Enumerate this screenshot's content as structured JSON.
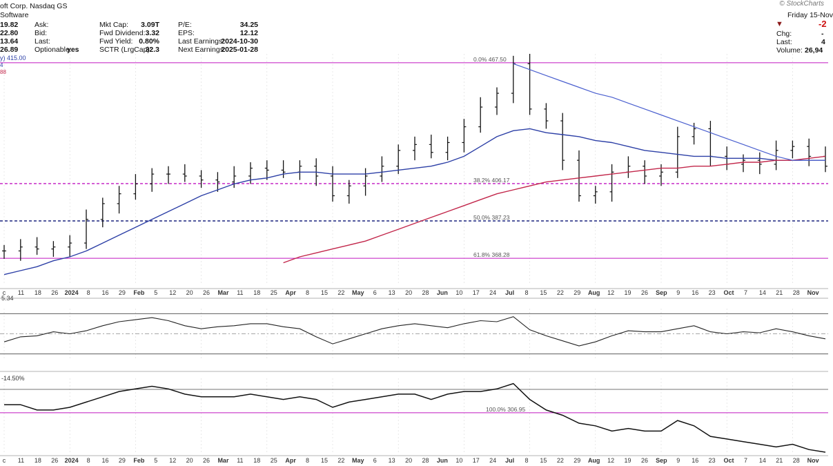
{
  "header": {
    "title": "oft Corp. Nasdaq GS",
    "sector": "Software",
    "brand": "© StockCharts",
    "date_label": "Friday 15-Nov",
    "chg_value": "-2",
    "left_values": [
      "19.82",
      "22.80",
      "13.64",
      "26.89"
    ],
    "col1": [
      {
        "label": "Ask:",
        "value": ""
      },
      {
        "label": "Bid:",
        "value": ""
      },
      {
        "label": "Last:",
        "value": ""
      },
      {
        "label": "Optionable:",
        "value": "yes"
      }
    ],
    "col2": [
      {
        "label": "Mkt Cap:",
        "value": "3.09T"
      },
      {
        "label": "Fwd Dividend:",
        "value": "3.32"
      },
      {
        "label": "Fwd Yield:",
        "value": "0.80%"
      },
      {
        "label": "SCTR (LrgCap):",
        "value": "32.3"
      }
    ],
    "col3": [
      {
        "label": "P/E:",
        "value": "34.25"
      },
      {
        "label": "EPS:",
        "value": "12.12"
      },
      {
        "label": "Last Earnings:",
        "value": "2024-10-30"
      },
      {
        "label": "Next Earnings:",
        "value": "2025-01-28"
      }
    ],
    "right_rows": [
      {
        "label": "Chg:",
        "value": "-"
      },
      {
        "label": "Last:",
        "value": "4"
      },
      {
        "label": "Volume:",
        "value": "26,94"
      }
    ],
    "ma_labels": [
      "y) 415.00",
      "4",
      "88"
    ]
  },
  "chart_data": [
    {
      "type": "ohlc",
      "panel": "price",
      "x": [
        "Dec 4",
        "Dec 11",
        "Dec 18",
        "Dec 26",
        "Jan 2",
        "Jan 8",
        "Jan 16",
        "Jan 22",
        "Jan 29",
        "Feb 5",
        "Feb 12",
        "Feb 20",
        "Feb 26",
        "Mar 4",
        "Mar 11",
        "Mar 18",
        "Mar 25",
        "Apr 1",
        "Apr 8",
        "Apr 15",
        "Apr 22",
        "Apr 29",
        "May 6",
        "May 13",
        "May 20",
        "May 28",
        "Jun 3",
        "Jun 10",
        "Jun 17",
        "Jun 24",
        "Jul 1",
        "Jul 8",
        "Jul 15",
        "Jul 22",
        "Jul 29",
        "Aug 5",
        "Aug 12",
        "Aug 19",
        "Aug 26",
        "Sep 3",
        "Sep 9",
        "Sep 16",
        "Sep 23",
        "Sep 30",
        "Oct 7",
        "Oct 14",
        "Oct 21",
        "Oct 28",
        "Nov 4",
        "Nov 11",
        "Nov 15"
      ],
      "series": [
        {
          "name": "close",
          "values": [
            372,
            374,
            373,
            374,
            376,
            388,
            396,
            401,
            406,
            411,
            411,
            410,
            408,
            407,
            410,
            414,
            413,
            412,
            415,
            410,
            400,
            405,
            410,
            415,
            423,
            426,
            422,
            427,
            435,
            445,
            452,
            467,
            444,
            438,
            418,
            400,
            402,
            412,
            415,
            410,
            412,
            430,
            434,
            420,
            416,
            418,
            416,
            423,
            425,
            420,
            415
          ]
        },
        {
          "name": "sma_50",
          "values": [
            360,
            362,
            364,
            367,
            369,
            372,
            376,
            380,
            384,
            388,
            392,
            396,
            400,
            403,
            406,
            408,
            409,
            411,
            412,
            412,
            411,
            411,
            411,
            412,
            413,
            414,
            415,
            417,
            420,
            425,
            430,
            433,
            434,
            432,
            431,
            430,
            428,
            427,
            425,
            423,
            422,
            421,
            420,
            420,
            419,
            419,
            419,
            418,
            418,
            418,
            418
          ]
        },
        {
          "name": "sma_200",
          "values": [
            null,
            null,
            null,
            null,
            null,
            null,
            null,
            null,
            null,
            null,
            null,
            null,
            null,
            null,
            null,
            null,
            null,
            366,
            369,
            371,
            373,
            375,
            377,
            380,
            383,
            386,
            389,
            392,
            395,
            398,
            401,
            403,
            405,
            407,
            408,
            409,
            410,
            411,
            412,
            413,
            414,
            414,
            415,
            415,
            416,
            417,
            417,
            418,
            418,
            419,
            420
          ]
        },
        {
          "name": "fib_trend",
          "values": [
            null,
            null,
            null,
            null,
            null,
            null,
            null,
            null,
            null,
            null,
            null,
            null,
            null,
            null,
            null,
            null,
            null,
            null,
            null,
            null,
            null,
            null,
            null,
            null,
            null,
            null,
            null,
            null,
            null,
            null,
            null,
            467,
            464,
            461,
            458,
            455,
            452,
            450,
            447,
            444,
            441,
            438,
            435,
            432,
            429,
            426,
            423,
            420,
            418,
            418,
            418
          ]
        }
      ],
      "levels": [
        {
          "label": "0.0% 467.50",
          "value": 467.5
        },
        {
          "label": "38.2% 406.17",
          "value": 406.17
        },
        {
          "label": "50.0% 387.23",
          "value": 387.23
        },
        {
          "label": "61.8% 368.28",
          "value": 368.28
        }
      ],
      "ylim": [
        355,
        472
      ]
    },
    {
      "type": "line",
      "panel": "rsi",
      "label": "5.34",
      "values": [
        42,
        47,
        48,
        52,
        50,
        53,
        58,
        62,
        64,
        66,
        63,
        58,
        55,
        57,
        58,
        60,
        60,
        57,
        55,
        47,
        40,
        45,
        50,
        55,
        58,
        60,
        58,
        56,
        60,
        63,
        62,
        67,
        54,
        48,
        43,
        38,
        42,
        48,
        53,
        52,
        52,
        55,
        58,
        52,
        50,
        52,
        51,
        55,
        52,
        48,
        45
      ],
      "ylim": [
        25,
        75
      ],
      "levels": [
        30,
        50,
        70
      ]
    },
    {
      "type": "line",
      "panel": "relative",
      "label": "-14.50%",
      "values": [
        310,
        310,
        308,
        308,
        309,
        311,
        313,
        315,
        316,
        317,
        316,
        314,
        313,
        313,
        313,
        314,
        313,
        312,
        313,
        312,
        309,
        311,
        312,
        313,
        314,
        314,
        312,
        314,
        315,
        315,
        316,
        318,
        312,
        308,
        306,
        303,
        302,
        300,
        301,
        300,
        300,
        304,
        302,
        298,
        297,
        296,
        295,
        294,
        295,
        293,
        292
      ],
      "ylim": [
        292,
        320
      ],
      "levels": [
        {
          "label": "100.0% 306.95",
          "value": 306.95
        }
      ]
    }
  ],
  "x_axis": {
    "labels": [
      "c",
      "11",
      "18",
      "26",
      "2024",
      "8",
      "16",
      "29",
      "Feb",
      "5",
      "12",
      "20",
      "26",
      "Mar",
      "11",
      "18",
      "25",
      "Apr",
      "8",
      "15",
      "22",
      "May",
      "6",
      "13",
      "20",
      "28",
      "Jun",
      "10",
      "17",
      "24",
      "Jul",
      "8",
      "15",
      "22",
      "29",
      "Aug",
      "12",
      "19",
      "26",
      "Sep",
      "9",
      "16",
      "23",
      "Oct",
      "7",
      "14",
      "21",
      "28",
      "Nov"
    ]
  },
  "colors": {
    "price_bars": "#111111",
    "sma_50": "#2c3fa6",
    "sma_200": "#c2264a",
    "trend_line": "#4a5fcf",
    "fib_line": "#c016c0",
    "dashed_level": "#1a237e",
    "grid": "#d9d9d9",
    "rsi_fill": "#4e7a4e"
  }
}
